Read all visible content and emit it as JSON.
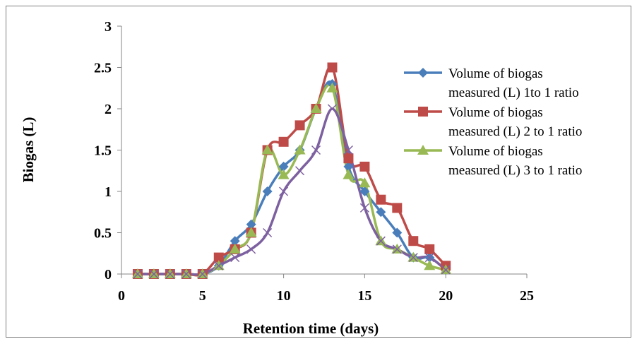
{
  "chart_data": {
    "type": "line",
    "title": "",
    "xlabel": "Retention time (days)",
    "ylabel": "Biogas (L)",
    "xlim": [
      0,
      25
    ],
    "ylim": [
      0,
      3
    ],
    "x_ticks": [
      "0",
      "5",
      "10",
      "15",
      "20",
      "25"
    ],
    "y_ticks": [
      "0",
      "0.5",
      "1",
      "1.5",
      "2",
      "2.5",
      "3"
    ],
    "grid": false,
    "smooth": true,
    "legend_position": "right",
    "series": [
      {
        "name": "Volume of biogas measured (L) 1to 1 ratio",
        "legend_lines": [
          "Volume of biogas",
          "measured (L) 1to 1 ratio"
        ],
        "color": "#4a7ebb",
        "marker": "diamond",
        "x": [
          1,
          2,
          3,
          4,
          5,
          6,
          7,
          8,
          9,
          10,
          11,
          12,
          13,
          14,
          15,
          16,
          17,
          18,
          19,
          20
        ],
        "y": [
          0,
          0,
          0,
          0,
          0,
          0.1,
          0.4,
          0.6,
          1.0,
          1.3,
          1.5,
          2.0,
          2.3,
          1.3,
          1.0,
          0.75,
          0.5,
          0.2,
          0.2,
          0.05
        ]
      },
      {
        "name": "Volume of biogas measured (L) 2 to 1 ratio",
        "legend_lines": [
          "Volume of biogas",
          "measured (L) 2 to 1 ratio"
        ],
        "color": "#be4b48",
        "marker": "square",
        "x": [
          1,
          2,
          3,
          4,
          5,
          6,
          7,
          8,
          9,
          10,
          11,
          12,
          13,
          14,
          15,
          16,
          17,
          18,
          19,
          20
        ],
        "y": [
          0,
          0,
          0,
          0,
          0,
          0.2,
          0.3,
          0.5,
          1.5,
          1.6,
          1.8,
          2.0,
          2.5,
          1.4,
          1.3,
          0.9,
          0.8,
          0.4,
          0.3,
          0.1
        ]
      },
      {
        "name": "Volume of biogas measured (L) 3 to 1 ratio",
        "legend_lines": [
          "Volume of biogas",
          "measured (L) 3 to 1 ratio"
        ],
        "color": "#98b954",
        "marker": "triangle",
        "x": [
          1,
          2,
          3,
          4,
          5,
          6,
          7,
          8,
          9,
          10,
          11,
          12,
          13,
          14,
          15,
          16,
          17,
          18,
          19,
          20
        ],
        "y": [
          0,
          0,
          0,
          0,
          0,
          0.1,
          0.3,
          0.5,
          1.5,
          1.2,
          1.5,
          2.0,
          2.25,
          1.2,
          1.1,
          0.4,
          0.3,
          0.2,
          0.1,
          0.05
        ]
      },
      {
        "name": "",
        "legend_lines": [],
        "color": "#7d60a0",
        "marker": "x",
        "x": [
          1,
          2,
          3,
          4,
          5,
          6,
          7,
          8,
          9,
          10,
          11,
          12,
          13,
          14,
          15,
          16,
          17,
          18,
          19,
          20
        ],
        "y": [
          0,
          0,
          0,
          0,
          0,
          0.1,
          0.2,
          0.3,
          0.5,
          1.0,
          1.25,
          1.5,
          2.0,
          1.5,
          0.8,
          0.4,
          0.3,
          0.2,
          0.2,
          0.05
        ]
      }
    ]
  }
}
